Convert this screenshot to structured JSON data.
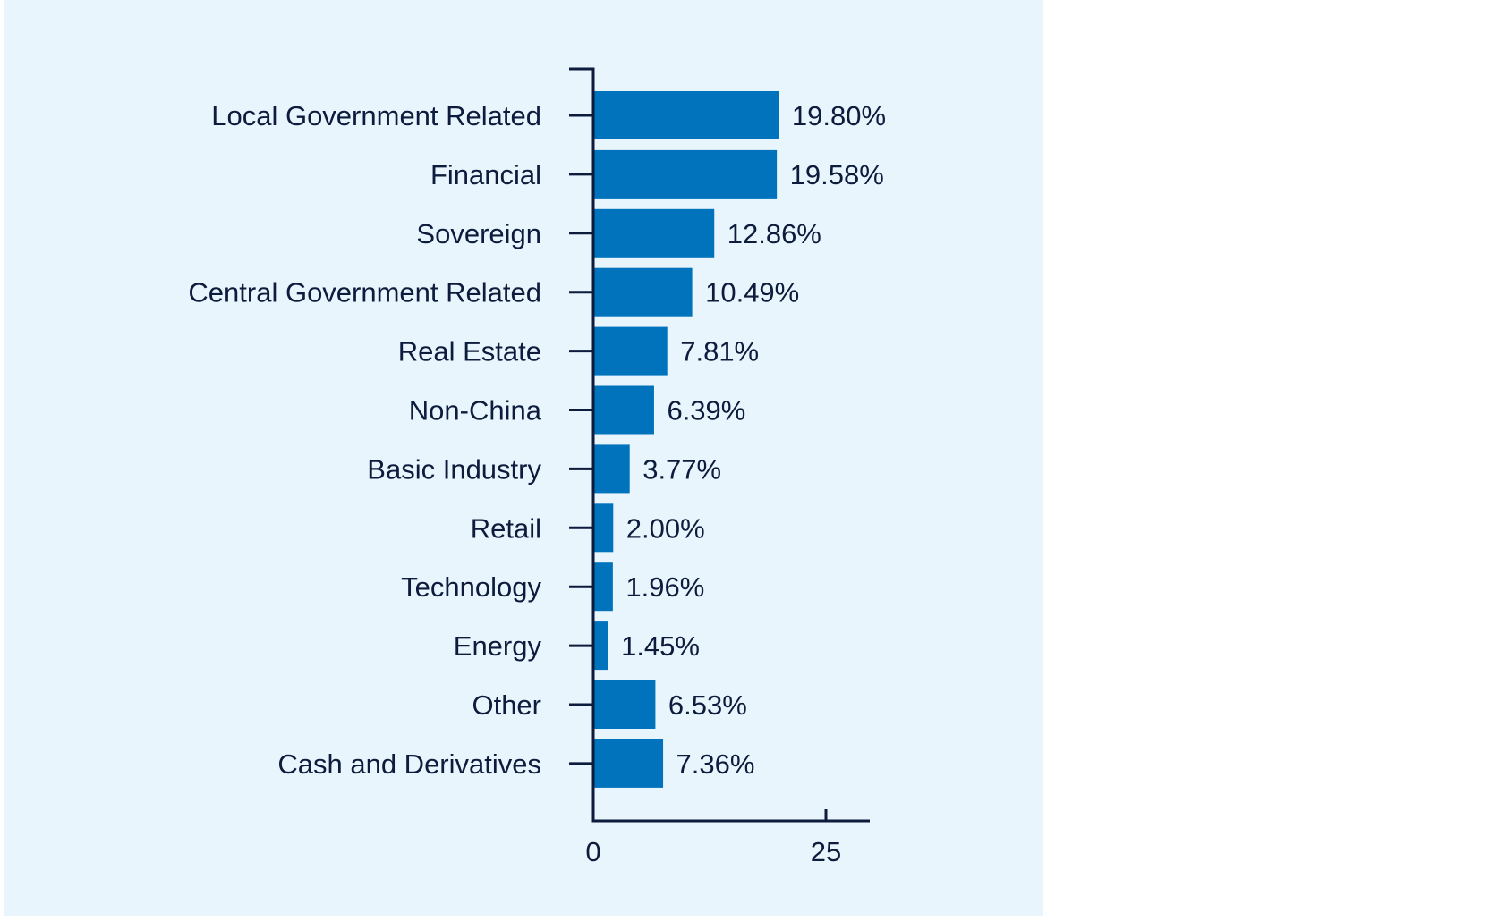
{
  "colors": {
    "panel_background": "#e9f5fc",
    "bar": "#0073bc",
    "axis": "#0d1b3d",
    "text": "#0d1b3d"
  },
  "chart_data": {
    "type": "bar",
    "orientation": "horizontal",
    "categories": [
      "Local Government Related",
      "Financial",
      "Sovereign",
      "Central Government Related",
      "Real Estate",
      "Non-China",
      "Basic Industry",
      "Retail",
      "Technology",
      "Energy",
      "Other",
      "Cash and Derivatives"
    ],
    "values": [
      19.8,
      19.58,
      12.86,
      10.49,
      7.81,
      6.39,
      3.77,
      2.0,
      1.96,
      1.45,
      6.53,
      7.36
    ],
    "value_labels": [
      "19.80%",
      "19.58%",
      "12.86%",
      "10.49%",
      "7.81%",
      "6.39%",
      "3.77%",
      "2.00%",
      "1.96%",
      "1.45%",
      "6.53%",
      "7.36%"
    ],
    "x_ticks": [
      0,
      25
    ],
    "x_tick_labels": [
      "0",
      "25"
    ],
    "xlim": [
      0,
      30
    ],
    "title": "",
    "xlabel": "",
    "ylabel": "",
    "grid": false,
    "legend": false
  }
}
